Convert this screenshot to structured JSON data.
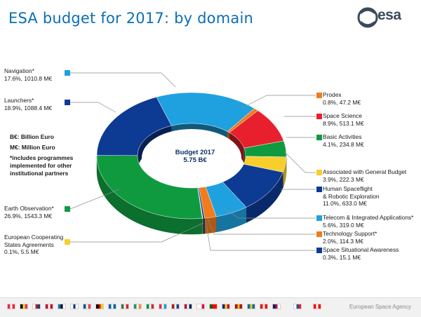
{
  "title": "ESA budget for 2017: by domain",
  "logo": {
    "text": "esa"
  },
  "center": {
    "line1": "Budget 2017",
    "line2": "5.75 B€"
  },
  "notes": [
    "B€: Billion Euro",
    "M€: Million Euro",
    "*includes programmes implemented for other institutional partners"
  ],
  "footer": {
    "agency": "European Space Agency"
  },
  "chart_data": {
    "type": "pie",
    "title": "ESA budget for 2017: by domain",
    "total_label": "5.75 B€",
    "unit": "M€",
    "slices": [
      {
        "name": "Navigation*",
        "percent": 17.6,
        "value": 1010.8,
        "value_label": "17.6%, 1010.8 M€",
        "color": "#1fa1e0"
      },
      {
        "name": "Prodex",
        "percent": 0.8,
        "value": 47.2,
        "value_label": "0.8%, 47.2 M€",
        "color": "#f07c1e"
      },
      {
        "name": "Space Science",
        "percent": 8.9,
        "value": 513.1,
        "value_label": "8.9%, 513.1 M€",
        "color": "#e8202e"
      },
      {
        "name": "Basic Activities",
        "percent": 4.1,
        "value": 234.8,
        "value_label": "4.1%, 234.8 M€",
        "color": "#0f9a3f"
      },
      {
        "name": "Associated with General Budget",
        "percent": 3.9,
        "value": 222.3,
        "value_label": "3.9%, 222.3 M€",
        "color": "#f8ce2b"
      },
      {
        "name": "Human Spaceflight & Robotic Exploration",
        "percent": 11.0,
        "value": 633.0,
        "value_label": "11.0%, 633.0 M€",
        "color": "#0d3a93"
      },
      {
        "name": "Telecom & Integrated Applications*",
        "percent": 5.6,
        "value": 319.0,
        "value_label": "5.6%, 319.0 M€",
        "color": "#1fa1e0"
      },
      {
        "name": "Technology Support*",
        "percent": 2.0,
        "value": 114.3,
        "value_label": "2.0%, 114.3 M€",
        "color": "#f07c1e"
      },
      {
        "name": "Space Situational Awareness",
        "percent": 0.3,
        "value": 15.1,
        "value_label": "0.3%, 15.1 M€",
        "color": "#0d3a93"
      },
      {
        "name": "European Cooperating States Agreements",
        "percent": 0.1,
        "value": 5.5,
        "value_label": "0.1%, 5.5 M€",
        "color": "#f8ce2b"
      },
      {
        "name": "Earth Observation*",
        "percent": 26.9,
        "value": 1543.3,
        "value_label": "26.9%, 1543.3 M€",
        "color": "#0f9a3f"
      },
      {
        "name": "Launchers*",
        "percent": 18.9,
        "value": 1088.4,
        "value_label": "18.9%, 1088.4 M€",
        "color": "#0d3a93"
      }
    ]
  }
}
